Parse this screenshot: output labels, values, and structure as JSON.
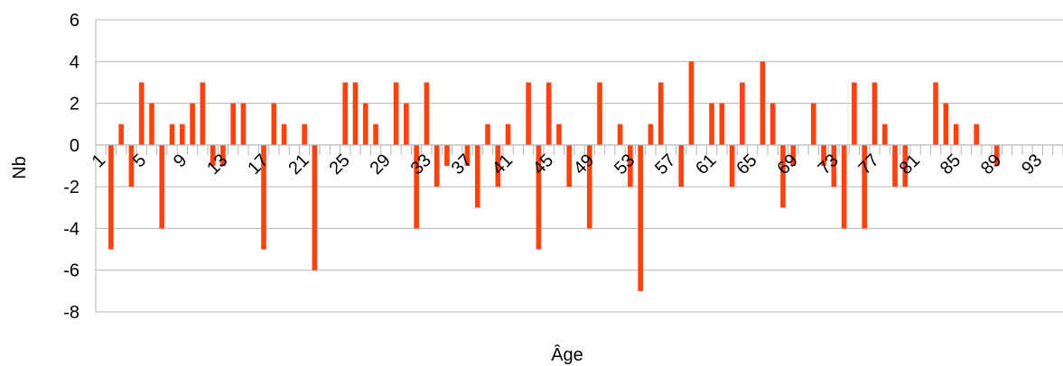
{
  "chart_data": {
    "type": "bar",
    "xlabel": "Âge",
    "ylabel": "Nb",
    "ylim": [
      -8,
      6
    ],
    "ytick_step": 2,
    "grid": true,
    "bar_color": "#ff420e",
    "grid_color": "#b3b3b3",
    "categories": [
      1,
      2,
      3,
      4,
      5,
      6,
      7,
      8,
      9,
      10,
      11,
      12,
      13,
      14,
      15,
      16,
      17,
      18,
      19,
      20,
      21,
      22,
      23,
      24,
      25,
      26,
      27,
      28,
      29,
      30,
      31,
      32,
      33,
      34,
      35,
      36,
      37,
      38,
      39,
      40,
      41,
      42,
      43,
      44,
      45,
      46,
      47,
      48,
      49,
      50,
      51,
      52,
      53,
      54,
      55,
      56,
      57,
      58,
      59,
      60,
      61,
      62,
      63,
      64,
      65,
      66,
      67,
      68,
      69,
      70,
      71,
      72,
      73,
      74,
      75,
      76,
      77,
      78,
      79,
      80,
      81,
      82,
      83,
      84,
      85,
      86,
      87,
      88,
      89,
      90,
      91,
      92,
      93,
      94,
      95
    ],
    "x_tick_labels": [
      "1",
      "5",
      "9",
      "13",
      "17",
      "21",
      "25",
      "29",
      "33",
      "37",
      "41",
      "45",
      "49",
      "53",
      "57",
      "61",
      "65",
      "69",
      "73",
      "77",
      "81",
      "85",
      "89",
      "93"
    ],
    "values": [
      0,
      -5,
      1,
      -2,
      3,
      2,
      -4,
      1,
      1,
      2,
      3,
      -1,
      -1,
      2,
      2,
      0,
      -5,
      2,
      1,
      0,
      1,
      -6,
      0,
      0,
      3,
      3,
      2,
      1,
      0,
      3,
      2,
      -4,
      3,
      -2,
      -1,
      0,
      -1,
      -3,
      1,
      -2,
      1,
      0,
      3,
      -5,
      3,
      1,
      -2,
      0,
      -4,
      3,
      0,
      1,
      -2,
      -7,
      1,
      3,
      0,
      -2,
      4,
      0,
      2,
      2,
      -2,
      3,
      0,
      4,
      2,
      -3,
      -1,
      0,
      2,
      -1,
      -2,
      -4,
      3,
      -4,
      3,
      1,
      -2,
      -2,
      0,
      0,
      3,
      2,
      1,
      0,
      1,
      0,
      -1,
      0,
      0,
      0,
      0,
      0,
      0
    ]
  }
}
